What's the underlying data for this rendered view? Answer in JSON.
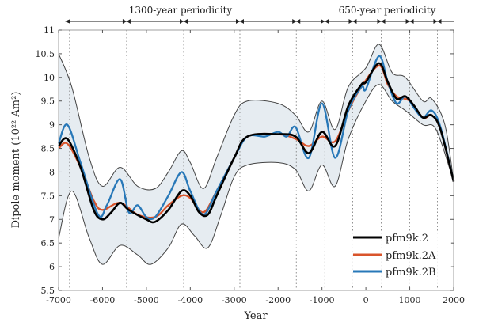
{
  "chart_data": {
    "type": "line",
    "title": "",
    "xlabel": "Year",
    "ylabel": "Dipole moment (10²² Am²)",
    "xlim": [
      -7000,
      2000
    ],
    "ylim": [
      5.5,
      11
    ],
    "xticks": [
      -7000,
      -6000,
      -5000,
      -4000,
      -3000,
      -2000,
      -1000,
      0,
      1000,
      2000
    ],
    "yticks": [
      5.5,
      6,
      6.5,
      7,
      7.5,
      8,
      8.5,
      9,
      9.5,
      10,
      10.5,
      11
    ],
    "grid": false,
    "legend_placement": "bottom-right",
    "annotations": [
      {
        "text": "1300-year periodicity"
      },
      {
        "text": "650-year periodicity"
      }
    ],
    "periodicity_markers": [
      -6750,
      -5450,
      -4150,
      -2870,
      -1585,
      -935,
      -300,
      350,
      1000,
      1630
    ],
    "series": [
      {
        "name": "pfm9k.2",
        "color": "#000000",
        "x": [
          -7000,
          -6800,
          -6500,
          -6200,
          -6000,
          -5800,
          -5600,
          -5400,
          -5000,
          -4800,
          -4500,
          -4200,
          -4000,
          -3800,
          -3600,
          -3400,
          -3000,
          -2700,
          -2000,
          -1600,
          -1300,
          -1000,
          -700,
          -400,
          -100,
          0,
          300,
          500,
          700,
          900,
          1100,
          1300,
          1500,
          1700,
          2000
        ],
        "y": [
          8.55,
          8.7,
          8.1,
          7.2,
          7.0,
          7.15,
          7.35,
          7.2,
          7.0,
          6.95,
          7.2,
          7.6,
          7.5,
          7.15,
          7.1,
          7.5,
          8.3,
          8.75,
          8.8,
          8.75,
          8.4,
          8.85,
          8.55,
          9.4,
          9.85,
          9.9,
          10.3,
          9.9,
          9.55,
          9.6,
          9.4,
          9.15,
          9.2,
          8.9,
          7.8
        ]
      },
      {
        "name": "pfm9k.2A",
        "color": "#d9542b",
        "x": [
          -7000,
          -6800,
          -6500,
          -6200,
          -6000,
          -5600,
          -5200,
          -4800,
          -4500,
          -4200,
          -4000,
          -3700,
          -3400,
          -3000,
          -2700,
          -2000,
          -1600,
          -1300,
          -1000,
          -700,
          -400,
          -100,
          300,
          500,
          700,
          1000,
          1300,
          1500,
          1700,
          2000
        ],
        "y": [
          8.5,
          8.6,
          8.1,
          7.4,
          7.2,
          7.35,
          7.1,
          7.05,
          7.3,
          7.5,
          7.45,
          7.15,
          7.6,
          8.3,
          8.75,
          8.8,
          8.7,
          8.55,
          8.75,
          8.65,
          9.3,
          9.8,
          10.25,
          9.85,
          9.6,
          9.5,
          9.15,
          9.2,
          8.9,
          7.8
        ]
      },
      {
        "name": "pfm9k.2B",
        "color": "#2878b8",
        "x": [
          -7000,
          -6800,
          -6500,
          -6100,
          -5900,
          -5600,
          -5400,
          -5200,
          -5000,
          -4800,
          -4500,
          -4200,
          -4000,
          -3700,
          -3400,
          -3000,
          -2700,
          -2300,
          -2000,
          -1800,
          -1600,
          -1300,
          -1000,
          -700,
          -400,
          -100,
          0,
          300,
          500,
          700,
          900,
          1100,
          1300,
          1500,
          1700,
          2000
        ],
        "y": [
          8.6,
          9.0,
          8.2,
          7.1,
          7.3,
          7.85,
          7.15,
          7.3,
          7.05,
          7.05,
          7.5,
          8.0,
          7.6,
          7.1,
          7.6,
          8.3,
          8.75,
          8.75,
          8.85,
          8.75,
          8.95,
          8.3,
          9.45,
          8.3,
          9.3,
          9.8,
          9.75,
          10.45,
          9.9,
          9.45,
          9.6,
          9.35,
          9.15,
          9.3,
          8.95,
          7.8
        ]
      }
    ],
    "envelope": {
      "color": "#444444",
      "upper": {
        "x": [
          -7000,
          -6700,
          -6300,
          -6000,
          -5600,
          -5200,
          -4800,
          -4500,
          -4200,
          -4000,
          -3700,
          -3400,
          -3000,
          -2700,
          -2000,
          -1600,
          -1300,
          -1000,
          -700,
          -400,
          0,
          300,
          600,
          900,
          1300,
          1500,
          1800,
          2000
        ],
        "y": [
          10.5,
          9.8,
          8.3,
          7.7,
          8.1,
          7.7,
          7.65,
          8.0,
          8.45,
          8.2,
          7.65,
          8.3,
          9.2,
          9.5,
          9.45,
          9.2,
          8.85,
          9.5,
          8.9,
          9.8,
          10.2,
          10.7,
          10.1,
          10.0,
          9.5,
          9.55,
          9.0,
          7.8
        ]
      },
      "lower": {
        "x": [
          -7000,
          -6700,
          -6300,
          -6000,
          -5600,
          -5200,
          -4900,
          -4500,
          -4200,
          -3900,
          -3600,
          -3300,
          -3000,
          -2700,
          -2000,
          -1600,
          -1300,
          -1000,
          -700,
          -400,
          0,
          300,
          600,
          900,
          1300,
          1600,
          2000
        ],
        "y": [
          6.6,
          7.6,
          6.6,
          6.05,
          6.45,
          6.25,
          6.05,
          6.4,
          6.9,
          6.65,
          6.4,
          7.1,
          7.9,
          8.15,
          8.2,
          8.05,
          7.6,
          8.15,
          7.7,
          8.7,
          9.5,
          9.85,
          9.5,
          9.3,
          9.0,
          8.9,
          7.8
        ]
      }
    }
  }
}
